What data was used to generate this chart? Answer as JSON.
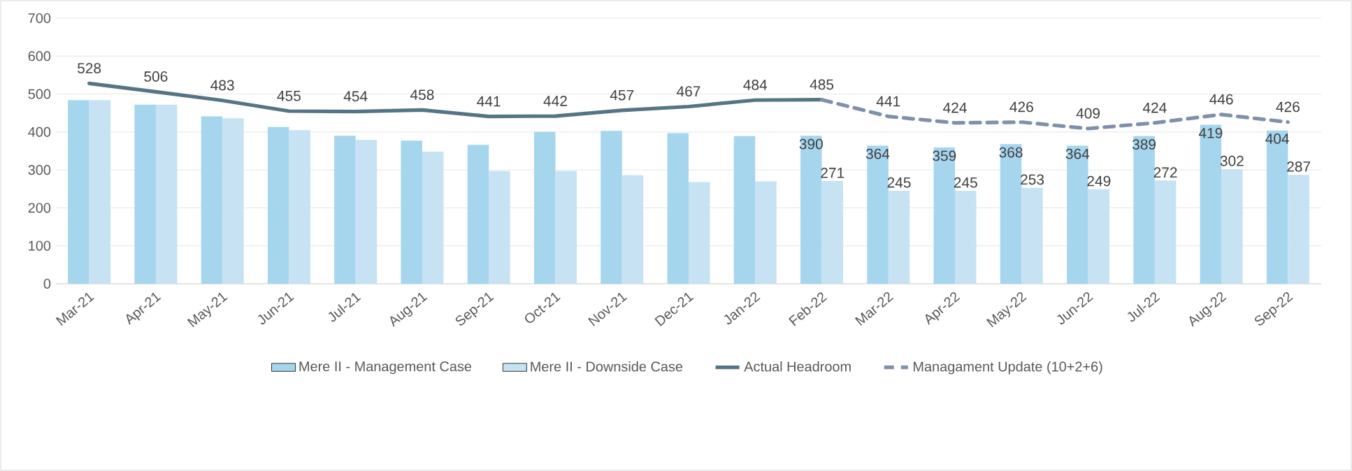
{
  "chart_data": {
    "type": "bar",
    "categories": [
      "Mar-21",
      "Apr-21",
      "May-21",
      "Jun-21",
      "Jul-21",
      "Aug-21",
      "Sep-21",
      "Oct-21",
      "Nov-21",
      "Dec-21",
      "Jan-22",
      "Feb-22",
      "Mar-22",
      "Apr-22",
      "May-22",
      "Jun-22",
      "Jul-22",
      "Aug-22",
      "Sep-22"
    ],
    "series": [
      {
        "name": "Mere II - Management Case",
        "color": "#a6d5ee",
        "values": [
          484,
          472,
          441,
          413,
          390,
          377,
          366,
          400,
          403,
          397,
          389,
          390,
          364,
          359,
          368,
          364,
          389,
          419,
          404
        ],
        "value_labels": [
          null,
          null,
          null,
          null,
          null,
          null,
          null,
          null,
          null,
          null,
          null,
          "390",
          "364",
          "359",
          "368",
          "364",
          "389",
          "419",
          "404"
        ]
      },
      {
        "name": "Mere II - Downside Case",
        "color": "#c6e2f3",
        "values": [
          484,
          472,
          436,
          405,
          379,
          348,
          297,
          297,
          286,
          268,
          270,
          271,
          245,
          245,
          253,
          249,
          272,
          302,
          287
        ],
        "value_labels": [
          null,
          null,
          null,
          null,
          null,
          null,
          null,
          null,
          null,
          null,
          null,
          "271",
          "245",
          "245",
          "253",
          "249",
          "272",
          "302",
          "287"
        ]
      },
      {
        "name": "Actual Headroom",
        "type": "line",
        "line_style": "solid",
        "color": "#557585",
        "values": [
          528,
          506,
          483,
          455,
          454,
          458,
          441,
          442,
          457,
          467,
          484,
          485,
          null,
          null,
          null,
          null,
          null,
          null,
          null
        ],
        "value_labels": [
          "528",
          "506",
          "483",
          "455",
          "454",
          "458",
          "441",
          "442",
          "457",
          "467",
          "484",
          "485",
          null,
          null,
          null,
          null,
          null,
          null,
          null
        ]
      },
      {
        "name": "Managament Update (10+2+6)",
        "type": "line",
        "line_style": "dashed",
        "color": "#8090a8",
        "values": [
          null,
          null,
          null,
          null,
          null,
          null,
          null,
          null,
          null,
          null,
          null,
          485,
          441,
          424,
          426,
          409,
          424,
          446,
          426
        ],
        "value_labels": [
          null,
          null,
          null,
          null,
          null,
          null,
          null,
          null,
          null,
          null,
          null,
          null,
          "441",
          "424",
          "426",
          "409",
          "424",
          "446",
          "426"
        ]
      }
    ],
    "ylim": [
      0,
      700
    ],
    "yticks": [
      0,
      100,
      200,
      300,
      400,
      500,
      600,
      700
    ],
    "grid": "y",
    "legend": "bottom",
    "marker": "none"
  }
}
